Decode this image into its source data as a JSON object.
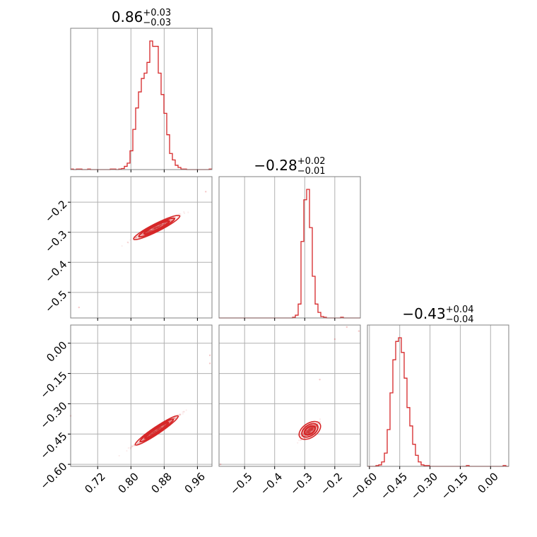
{
  "chart_data": {
    "type": "corner",
    "color": "#d62728",
    "params": [
      {
        "median": 0.86,
        "title": {
          "value": "0.86",
          "upper": "+0.03",
          "lower": "−0.03"
        },
        "range": [
          0.655,
          0.995
        ],
        "ticks": [
          {
            "value": 0.72,
            "label": "0.72"
          },
          {
            "value": 0.8,
            "label": "0.80"
          },
          {
            "value": 0.88,
            "label": "0.88"
          },
          {
            "value": 0.96,
            "label": "0.96"
          }
        ]
      },
      {
        "median": -0.28,
        "title": {
          "value": "−0.28",
          "upper": "+0.02",
          "lower": "−0.01"
        },
        "range": [
          -0.585,
          -0.115
        ],
        "ticks": [
          {
            "value": -0.5,
            "label": "−0.5"
          },
          {
            "value": -0.4,
            "label": "−0.4"
          },
          {
            "value": -0.3,
            "label": "−0.3"
          },
          {
            "value": -0.2,
            "label": "−0.2"
          }
        ]
      },
      {
        "median": -0.43,
        "title": {
          "value": "−0.43",
          "upper": "+0.04",
          "lower": "−0.04"
        },
        "range": [
          -0.61,
          0.09
        ],
        "ticks": [
          {
            "value": -0.6,
            "label": "−0.60"
          },
          {
            "value": -0.45,
            "label": "−0.45"
          },
          {
            "value": -0.3,
            "label": "−0.30"
          },
          {
            "value": -0.15,
            "label": "−0.15"
          },
          {
            "value": 0.0,
            "label": "0.00"
          }
        ]
      }
    ],
    "histograms": [
      {
        "param": 0,
        "bins": [
          0.655,
          0.6618,
          0.6686,
          0.6754,
          0.6822,
          0.689,
          0.6958,
          0.7026,
          0.7094,
          0.7162,
          0.723,
          0.7298,
          0.7366,
          0.7434,
          0.7502,
          0.757,
          0.7638,
          0.7706,
          0.7774,
          0.7842,
          0.791,
          0.7978,
          0.8046,
          0.8114,
          0.8182,
          0.825,
          0.8318,
          0.8386,
          0.8454,
          0.8522,
          0.859,
          0.8658,
          0.8726,
          0.8794,
          0.8862,
          0.893,
          0.8998,
          0.9066,
          0.9134,
          0.9202,
          0.927,
          0.9338,
          0.9406,
          0.9474,
          0.9542,
          0.961,
          0.9678,
          0.9746,
          0.9814,
          0.9882,
          0.995
        ],
        "counts": [
          1,
          0,
          1,
          1,
          0,
          0,
          1,
          0,
          0,
          0,
          0,
          0,
          0,
          0,
          1,
          1,
          0,
          1,
          2,
          6,
          12,
          35,
          75,
          115,
          145,
          170,
          180,
          200,
          240,
          230,
          230,
          180,
          140,
          105,
          65,
          30,
          18,
          8,
          4,
          1,
          1,
          0,
          0,
          0,
          0,
          0,
          0,
          0,
          0,
          1
        ]
      },
      {
        "param": 1,
        "bins": [
          -0.585,
          -0.5756,
          -0.5662,
          -0.5568,
          -0.5474,
          -0.538,
          -0.5286,
          -0.5192,
          -0.5098,
          -0.5004,
          -0.491,
          -0.4816,
          -0.4722,
          -0.4628,
          -0.4534,
          -0.444,
          -0.4346,
          -0.4252,
          -0.4158,
          -0.4064,
          -0.397,
          -0.3876,
          -0.3782,
          -0.3688,
          -0.3594,
          -0.35,
          -0.3406,
          -0.3312,
          -0.3218,
          -0.3124,
          -0.303,
          -0.2936,
          -0.2842,
          -0.2748,
          -0.2654,
          -0.256,
          -0.2466,
          -0.2372,
          -0.2278,
          -0.2184,
          -0.209,
          -0.1996,
          -0.1902,
          -0.1808,
          -0.1714,
          -0.162,
          -0.1526,
          -0.1432,
          -0.1338,
          -0.1244,
          -0.115
        ],
        "counts": [
          0,
          0,
          0,
          0,
          0,
          0,
          0,
          0,
          0,
          0,
          0,
          0,
          0,
          0,
          0,
          0,
          0,
          0,
          0,
          0,
          0,
          0,
          0,
          0,
          0,
          0,
          1,
          4,
          20,
          110,
          170,
          185,
          130,
          60,
          20,
          8,
          2,
          1,
          0,
          0,
          0,
          0,
          0,
          1,
          0,
          0,
          0,
          0,
          0,
          0
        ]
      },
      {
        "param": 2,
        "bins": [
          -0.61,
          -0.596,
          -0.582,
          -0.568,
          -0.554,
          -0.54,
          -0.526,
          -0.512,
          -0.498,
          -0.484,
          -0.47,
          -0.456,
          -0.442,
          -0.428,
          -0.414,
          -0.4,
          -0.386,
          -0.372,
          -0.358,
          -0.344,
          -0.33,
          -0.316,
          -0.302,
          -0.288,
          -0.274,
          -0.26,
          -0.246,
          -0.232,
          -0.218,
          -0.204,
          -0.19,
          -0.176,
          -0.162,
          -0.148,
          -0.134,
          -0.12,
          -0.106,
          -0.092,
          -0.078,
          -0.064,
          -0.05,
          -0.036,
          -0.022,
          -0.008,
          0.006,
          0.02,
          0.034,
          0.048,
          0.062,
          0.076,
          0.09
        ],
        "counts": [
          0,
          0,
          0,
          1,
          2,
          6,
          18,
          50,
          100,
          145,
          170,
          175,
          155,
          120,
          80,
          55,
          30,
          15,
          6,
          2,
          1,
          1,
          0,
          0,
          0,
          0,
          0,
          0,
          0,
          0,
          0,
          0,
          0,
          0,
          0,
          1,
          0,
          0,
          0,
          0,
          0,
          0,
          0,
          0,
          0,
          0,
          0,
          0,
          1,
          0
        ]
      }
    ],
    "scatter_panels": [
      {
        "x_param": 0,
        "y_param": 1,
        "slope": 1.2,
        "sx": 0.024,
        "sy": 0.003,
        "outliers": [
          [
            0.675,
            -0.55
          ],
          [
            0.98,
            -0.165
          ]
        ],
        "contours": [
          {
            "center": [
              0.862,
              -0.284
            ],
            "a": 0.034,
            "b": 0.0032
          },
          {
            "center": [
              0.862,
              -0.284
            ],
            "a": 0.048,
            "b": 0.0045
          },
          {
            "center": [
              0.862,
              -0.284
            ],
            "a": 0.062,
            "b": 0.006
          }
        ]
      },
      {
        "x_param": 0,
        "y_param": 2,
        "slope": 1.6,
        "sx": 0.024,
        "sy": 0.004,
        "outliers": [
          [
            0.655,
            -0.36
          ],
          [
            0.99,
            -0.06
          ],
          [
            0.99,
            -0.1
          ]
        ],
        "contours": [
          {
            "center": [
              0.862,
              -0.432
            ],
            "a": 0.034,
            "b": 0.004
          },
          {
            "center": [
              0.862,
              -0.432
            ],
            "a": 0.048,
            "b": 0.006
          },
          {
            "center": [
              0.862,
              -0.432
            ],
            "a": 0.062,
            "b": 0.008
          }
        ]
      },
      {
        "x_param": 1,
        "y_param": 2,
        "slope": 1.6,
        "sx": 0.012,
        "sy": 0.01,
        "outliers": [
          [
            -0.58,
            -0.6
          ],
          [
            -0.16,
            0.08
          ],
          [
            -0.12,
            0.06
          ],
          [
            -0.2,
            0.02
          ],
          [
            -0.25,
            -0.18
          ]
        ],
        "contours": [
          {
            "center": [
              -0.283,
              -0.432
            ],
            "a": 0.02,
            "b": 0.008
          },
          {
            "center": [
              -0.283,
              -0.432
            ],
            "a": 0.03,
            "b": 0.012
          },
          {
            "center": [
              -0.283,
              -0.432
            ],
            "a": 0.04,
            "b": 0.016
          }
        ]
      }
    ]
  }
}
